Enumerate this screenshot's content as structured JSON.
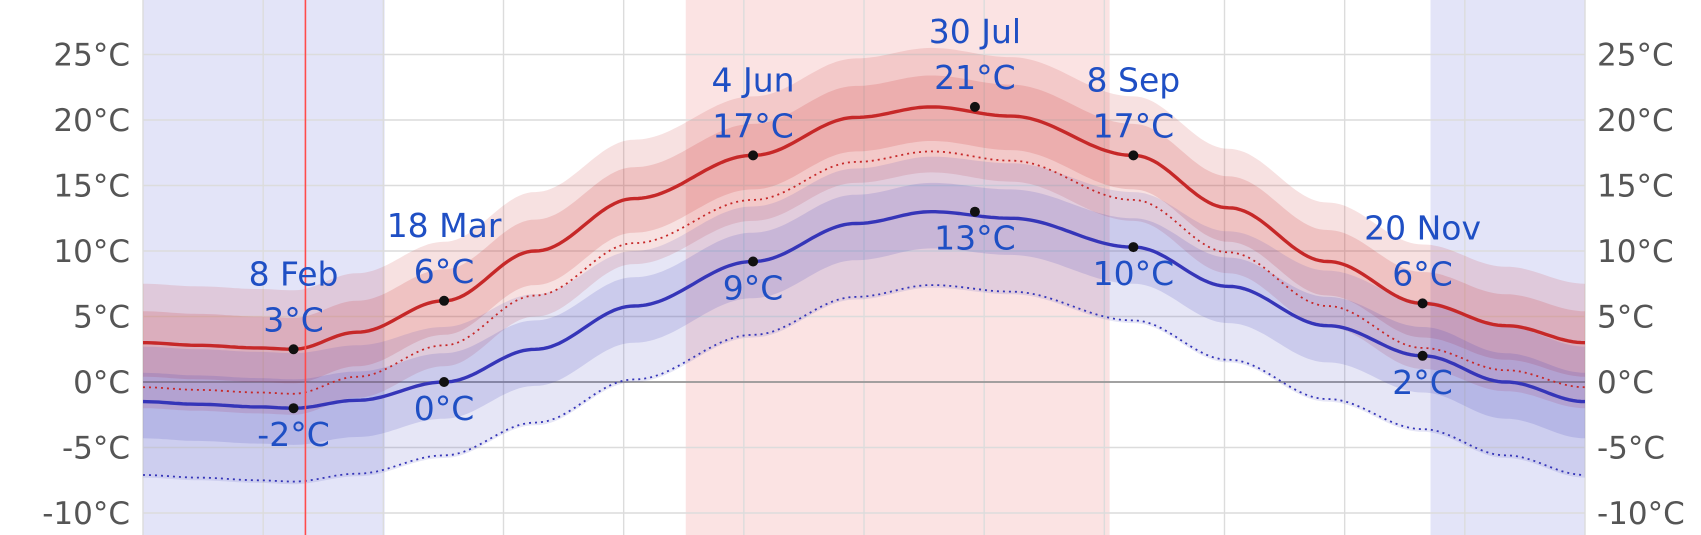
{
  "chart_data": {
    "type": "line",
    "title": "",
    "xlabel": "",
    "ylabel": "",
    "ylim": [
      -11,
      30
    ],
    "x_range_days": [
      1,
      365
    ],
    "y_ticks": [
      25,
      20,
      15,
      10,
      5,
      0,
      -5,
      -10
    ],
    "y_tick_labels": [
      "25°C",
      "20°C",
      "15°C",
      "10°C",
      "5°C",
      "0°C",
      "-5°C",
      "-10°C"
    ],
    "grid": true,
    "colors": {
      "high": "#c62828",
      "low": "#3535b8",
      "annotation": "#1f4fc4",
      "winter_band": "#e3e4f8",
      "summer_band": "#fbe3e3",
      "marker_line": "#ff4b4b"
    },
    "shaded_periods": [
      {
        "kind": "cold",
        "from_day": 1,
        "to_day": 62
      },
      {
        "kind": "warm",
        "from_day": 138,
        "to_day": 245
      },
      {
        "kind": "cold",
        "from_day": 326,
        "to_day": 365
      }
    ],
    "today_marker_day": 42,
    "series": [
      {
        "key": "high",
        "x": [
          1,
          15,
          30,
          39,
          55,
          77,
          100,
          125,
          155,
          181,
          200,
          220,
          251,
          275,
          300,
          324,
          345,
          365
        ],
        "values": [
          3,
          2.8,
          2.6,
          2.5,
          3.8,
          6.2,
          10,
          14,
          17.3,
          20.2,
          21,
          20.3,
          17.3,
          13.3,
          9.2,
          6,
          4.3,
          3
        ]
      },
      {
        "key": "low",
        "x": [
          1,
          15,
          30,
          39,
          55,
          77,
          100,
          125,
          155,
          181,
          200,
          220,
          251,
          275,
          300,
          324,
          345,
          365
        ],
        "values": [
          -1.5,
          -1.7,
          -1.9,
          -2,
          -1.4,
          0,
          2.5,
          5.8,
          9.2,
          12.1,
          13,
          12.5,
          10.3,
          7.3,
          4.3,
          2,
          0,
          -1.5
        ]
      }
    ],
    "annotations": [
      {
        "day": 39,
        "value": 2.5,
        "side": "above",
        "date": "8 Feb",
        "temp": "3°C"
      },
      {
        "day": 39,
        "value": -2,
        "side": "below",
        "date": "",
        "temp": "-2°C"
      },
      {
        "day": 77,
        "value": 6.2,
        "side": "above",
        "date": "18 Mar",
        "temp": "6°C"
      },
      {
        "day": 77,
        "value": 0,
        "side": "below",
        "date": "",
        "temp": "0°C"
      },
      {
        "day": 155,
        "value": 17.3,
        "side": "above",
        "date": "4 Jun",
        "temp": "17°C"
      },
      {
        "day": 155,
        "value": 9.2,
        "side": "below",
        "date": "",
        "temp": "9°C"
      },
      {
        "day": 211,
        "value": 21,
        "side": "above",
        "date": "30 Jul",
        "temp": "21°C"
      },
      {
        "day": 211,
        "value": 13,
        "side": "below",
        "date": "",
        "temp": "13°C"
      },
      {
        "day": 251,
        "value": 17.3,
        "side": "above",
        "date": "8 Sep",
        "temp": "17°C"
      },
      {
        "day": 251,
        "value": 10.3,
        "side": "below",
        "date": "",
        "temp": "10°C"
      },
      {
        "day": 324,
        "value": 6,
        "side": "above",
        "date": "20 Nov",
        "temp": "6°C"
      },
      {
        "day": 324,
        "value": 2,
        "side": "below",
        "date": "",
        "temp": "2°C"
      }
    ]
  }
}
